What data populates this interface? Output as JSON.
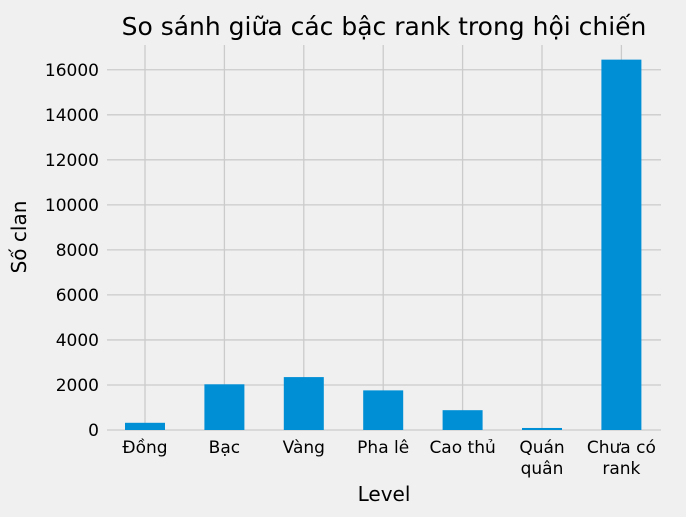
{
  "chart_data": {
    "type": "bar",
    "title": "So sánh giữa các bậc rank trong hội chiến",
    "xlabel": "Level",
    "ylabel": "Số clan",
    "categories": [
      [
        "Đồng"
      ],
      [
        "Bạc"
      ],
      [
        "Vàng"
      ],
      [
        "Pha lê"
      ],
      [
        "Cao thủ"
      ],
      [
        "Quán",
        "quân"
      ],
      [
        "Chưa có",
        "rank"
      ]
    ],
    "values": [
      320,
      2030,
      2350,
      1760,
      880,
      90,
      16450
    ],
    "ylim": [
      0,
      17100
    ],
    "yticks": [
      0,
      2000,
      4000,
      6000,
      8000,
      10000,
      12000,
      14000,
      16000
    ],
    "grid": true,
    "bar_color": "#008fd5",
    "background": "#f0f0f0",
    "grid_color": "#cbcbcb"
  }
}
